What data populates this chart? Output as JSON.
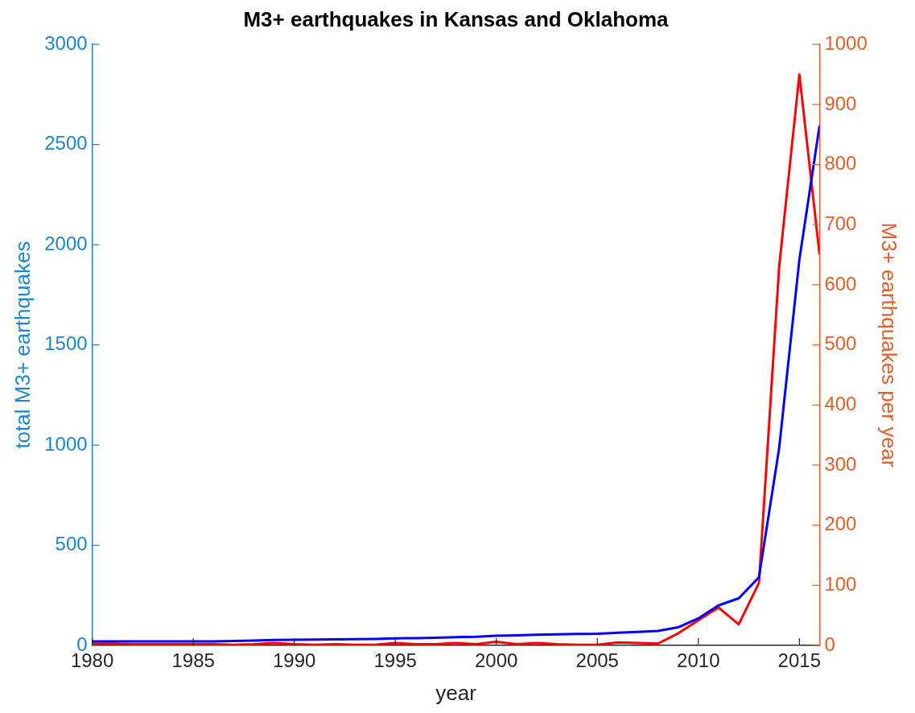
{
  "chart_data": {
    "type": "line",
    "title": "M3+ earthquakes in Kansas and Oklahoma",
    "xlabel": "year",
    "ylabel": "total M3+ earthquakes",
    "y2label": "M3+ earthquakes per year",
    "x": [
      1980,
      1981,
      1982,
      1983,
      1984,
      1985,
      1986,
      1987,
      1988,
      1989,
      1990,
      1991,
      1992,
      1993,
      1994,
      1995,
      1996,
      1997,
      1998,
      1999,
      2000,
      2001,
      2002,
      2003,
      2004,
      2005,
      2006,
      2007,
      2008,
      2009,
      2010,
      2011,
      2012,
      2013,
      2014,
      2015,
      2016
    ],
    "series": [
      {
        "color": "#0000ff",
        "values": [
          20,
          20,
          20,
          20,
          20,
          20,
          20,
          22,
          24,
          27,
          28,
          29,
          30,
          31,
          32,
          35,
          36,
          38,
          41,
          43,
          48,
          50,
          53,
          55,
          57,
          58,
          63,
          67,
          72,
          90,
          135,
          200,
          235,
          340,
          985,
          1925,
          2595
        ]
      },
      {
        "color": "#ff0000",
        "axis": "y2",
        "values": [
          3,
          3,
          2,
          2,
          2,
          2,
          2,
          1,
          2,
          4,
          2,
          1,
          2,
          1,
          1,
          4,
          2,
          2,
          4,
          2,
          6,
          2,
          4,
          2,
          1,
          1,
          5,
          4,
          3,
          20,
          42,
          63,
          35,
          104,
          630,
          950,
          650
        ]
      }
    ],
    "xlim": [
      1980,
      2016
    ],
    "xticks": [
      1980,
      1985,
      1990,
      1995,
      2000,
      2005,
      2010,
      2015
    ],
    "ylim": [
      0,
      3000
    ],
    "yticks": [
      0,
      500,
      1000,
      1500,
      2000,
      2500,
      3000
    ],
    "y2lim": [
      0,
      1000
    ],
    "y2ticks": [
      0,
      100,
      200,
      300,
      400,
      500,
      600,
      700,
      800,
      900,
      1000
    ],
    "grid": false,
    "legend": false,
    "line_style": "solid"
  }
}
